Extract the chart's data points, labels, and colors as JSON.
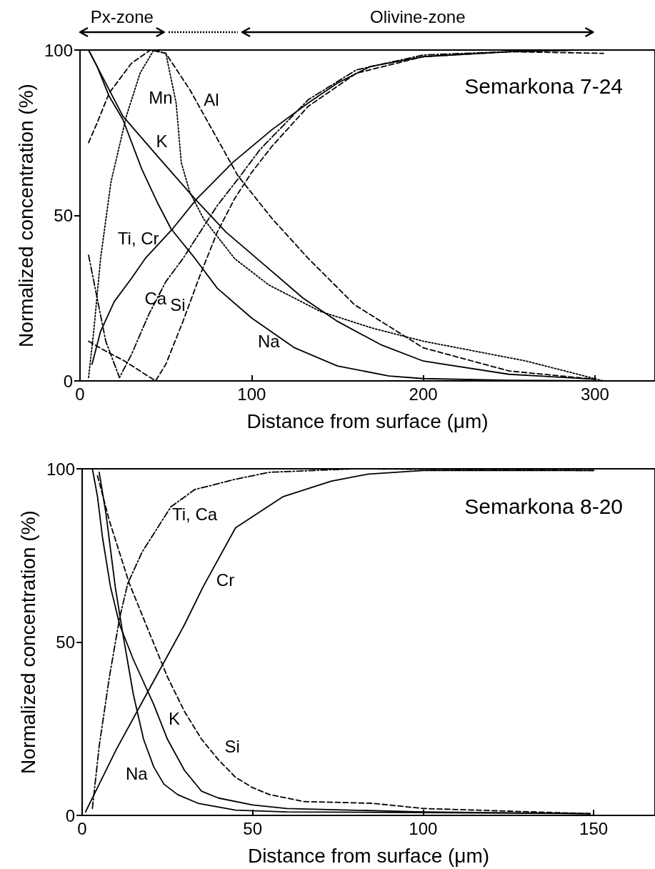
{
  "chart_data": [
    {
      "type": "line",
      "title": "Semarkona 7-24",
      "xlabel": "Distance from surface (μm)",
      "ylabel": "Normalized concentration (%)",
      "annotations": [
        "Px-zone",
        "Olivine-zone"
      ],
      "xlim": [
        0,
        335
      ],
      "ylim": [
        0,
        100
      ],
      "xticks": [
        0,
        100,
        200,
        300
      ],
      "yticks": [
        0,
        50,
        100
      ],
      "grid": false,
      "legend": false,
      "marker": "none",
      "series": [
        {
          "name": "Mn",
          "color": "#000000",
          "line_style": "dotted",
          "x": [
            5,
            8,
            12,
            18,
            27,
            35,
            43,
            50,
            56,
            59,
            64,
            72,
            90,
            110,
            140,
            170,
            200,
            230,
            260,
            290,
            305
          ],
          "values": [
            1,
            15,
            37,
            60,
            80,
            93,
            100,
            99,
            84,
            66,
            57,
            49,
            37,
            29,
            21,
            16,
            12,
            9,
            6,
            2,
            0
          ]
        },
        {
          "name": "Al",
          "color": "#000000",
          "line_style": "dashed",
          "x": [
            5,
            10,
            17,
            30,
            41,
            50,
            64,
            78,
            92,
            112,
            133,
            160,
            200,
            250,
            300
          ],
          "values": [
            72,
            78,
            87,
            96,
            100,
            99,
            88,
            75,
            62,
            49,
            37,
            23,
            10,
            3,
            0.5
          ]
        },
        {
          "name": "K",
          "color": "#000000",
          "line_style": "solid",
          "x": [
            5,
            15,
            25,
            45,
            67,
            85,
            103,
            130,
            150,
            175,
            200,
            250,
            300
          ],
          "values": [
            100,
            90,
            80,
            68,
            55,
            45,
            37,
            25,
            18,
            11,
            6,
            2,
            0.5
          ]
        },
        {
          "name": "Ti, Cr",
          "color": "#000000",
          "line_style": "solid",
          "x": [
            7,
            12,
            20,
            30,
            38,
            54,
            68,
            89,
            112,
            133,
            150,
            169,
            200,
            250,
            290
          ],
          "values": [
            5,
            15,
            24,
            31,
            37,
            46,
            55,
            66,
            76,
            84,
            90,
            95,
            98,
            99.5,
            100
          ]
        },
        {
          "name": "Ca",
          "color": "#000000",
          "line_style": "dashdot",
          "x": [
            5,
            10,
            15,
            23,
            30,
            40,
            50,
            60,
            70,
            80,
            92,
            105,
            133,
            161,
            200,
            250,
            290
          ],
          "values": [
            38,
            25,
            12,
            1,
            8,
            20,
            30,
            37,
            45,
            53,
            61,
            70,
            85,
            94,
            98.5,
            99.5,
            100
          ]
        },
        {
          "name": "Si",
          "color": "#000000",
          "line_style": "dashed",
          "x": [
            5,
            15,
            26,
            35,
            44,
            50,
            60,
            70,
            80,
            90,
            100,
            112,
            133,
            161,
            200,
            250,
            305
          ],
          "values": [
            12,
            9,
            6,
            3,
            0,
            5,
            18,
            32,
            45,
            55,
            63,
            71,
            83,
            93,
            98,
            99.5,
            99
          ]
        },
        {
          "name": "Na",
          "color": "#000000",
          "line_style": "solid",
          "x": [
            5,
            10,
            17,
            25,
            36,
            45,
            53,
            67,
            80,
            100,
            125,
            150,
            180,
            200,
            250,
            300
          ],
          "values": [
            100,
            95,
            86,
            79,
            64,
            54,
            46,
            37,
            28,
            19,
            10,
            4.5,
            1.5,
            0.7,
            0.2,
            0
          ]
        }
      ]
    },
    {
      "type": "line",
      "title": "Semarkona 8-20",
      "xlabel": "Distance from surface (μm)",
      "ylabel": "Normalized concentration (%)",
      "xlim": [
        0,
        168
      ],
      "ylim": [
        0,
        100
      ],
      "xticks": [
        0,
        50,
        100,
        150
      ],
      "yticks": [
        0,
        50,
        100
      ],
      "grid": false,
      "legend": false,
      "marker": "none",
      "series": [
        {
          "name": "Ti, Ca",
          "color": "#000000",
          "line_style": "dashdot",
          "x": [
            3,
            5,
            8,
            11,
            13.4,
            17.6,
            26,
            33,
            45,
            55,
            80,
            150
          ],
          "values": [
            2,
            20,
            40,
            57,
            67,
            76,
            89,
            94,
            97,
            99,
            100,
            99.5
          ]
        },
        {
          "name": "Cr",
          "color": "#000000",
          "line_style": "solid",
          "x": [
            1,
            10,
            20,
            30,
            35.5,
            45,
            59,
            73,
            84,
            100,
            150
          ],
          "values": [
            1,
            19,
            37,
            55,
            66,
            83,
            92,
            96.4,
            98.5,
            99.5,
            99.5
          ]
        },
        {
          "name": "K",
          "color": "#000000",
          "line_style": "solid",
          "x": [
            3,
            4.5,
            6,
            8.3,
            11,
            15,
            21,
            25,
            30,
            35,
            40,
            50,
            60,
            100,
            149
          ],
          "values": [
            100,
            92,
            80,
            66,
            55,
            45,
            32,
            22,
            13,
            7,
            5,
            3,
            2,
            1,
            0.5
          ]
        },
        {
          "name": "Si",
          "color": "#000000",
          "line_style": "dashed",
          "x": [
            4.5,
            8,
            13.8,
            20,
            25,
            30,
            35,
            40,
            45,
            50,
            55,
            65,
            85,
            100,
            149
          ],
          "values": [
            98,
            85,
            67,
            52,
            40,
            30,
            22,
            16,
            11,
            8,
            6,
            4,
            3.5,
            2,
            0.5
          ]
        },
        {
          "name": "Na",
          "color": "#000000",
          "line_style": "solid",
          "x": [
            5,
            7,
            9.7,
            12,
            15,
            18,
            21,
            24,
            28,
            34,
            45,
            60,
            100,
            149
          ],
          "values": [
            99,
            87,
            66,
            52,
            35,
            22,
            14,
            9,
            6,
            3.5,
            1.5,
            1,
            0.8,
            0.5
          ]
        }
      ]
    }
  ]
}
